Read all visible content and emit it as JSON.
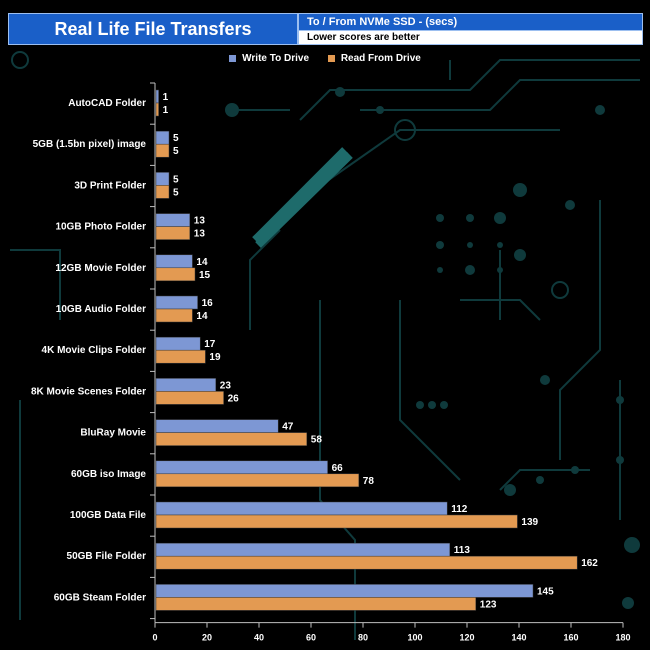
{
  "header": {
    "title": "Real Life File Transfers",
    "subtitle": "To /  From NVMe  SSD - (secs)",
    "note": "Lower scores are better"
  },
  "colors": {
    "write": "#7d97d4",
    "read": "#e39a52",
    "accent": "#1a5fc8",
    "circuit": "#0f3a3c"
  },
  "chart_data": {
    "type": "bar",
    "orientation": "horizontal",
    "title": "Real Life File Transfers",
    "subtitle": "To /  From NVMe  SSD - (secs)",
    "note": "Lower scores are better",
    "categories": [
      "AutoCAD Folder",
      "5GB (1.5bn pixel) image",
      "3D Print Folder",
      "10GB Photo Folder",
      "12GB Movie Folder",
      "10GB Audio Folder",
      "4K Movie Clips Folder",
      "8K Movie Scenes Folder",
      "BluRay Movie",
      "60GB iso Image",
      "100GB Data File",
      "50GB File Folder",
      "60GB Steam Folder"
    ],
    "series": [
      {
        "name": "Write To  Drive",
        "values": [
          1,
          5,
          5,
          13,
          14,
          16,
          17,
          23,
          47,
          66,
          112,
          113,
          145
        ]
      },
      {
        "name": "Read From  Drive",
        "values": [
          1,
          5,
          5,
          13,
          15,
          14,
          19,
          26,
          58,
          78,
          139,
          162,
          123
        ]
      }
    ],
    "xlim": [
      0,
      180
    ],
    "xticks": [
      0,
      20,
      40,
      60,
      80,
      100,
      120,
      140,
      160,
      180
    ],
    "legend_position": "top-center"
  }
}
